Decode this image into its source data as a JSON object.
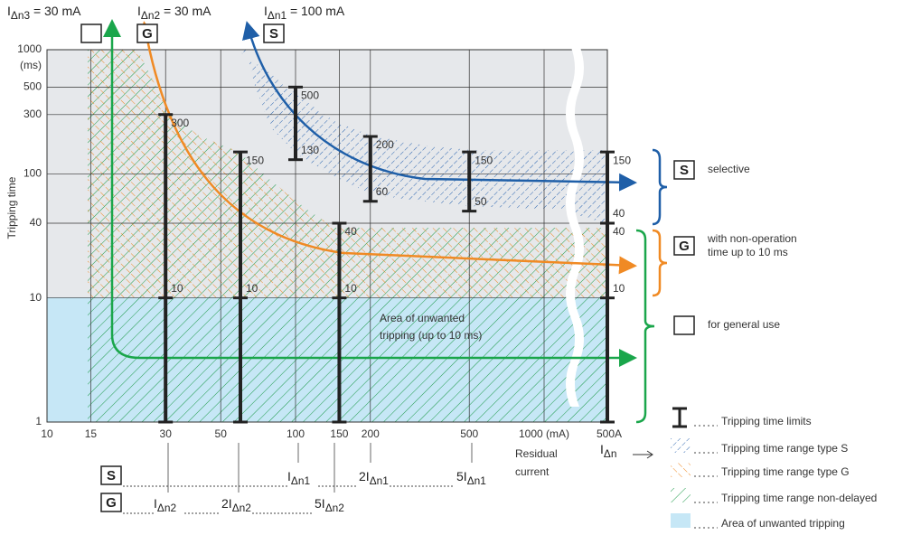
{
  "top_labels": [
    {
      "text": "I",
      "sub": "Δn3",
      "rest": " = 30 mA"
    },
    {
      "text": "I",
      "sub": "Δn2",
      "rest": " = 30 mA",
      "badge": "G"
    },
    {
      "text": "I",
      "sub": "Δn1",
      "rest": " = 100 mA",
      "badge": "S"
    }
  ],
  "axes": {
    "y_title": "Tripping time",
    "y_unit": "(ms)",
    "ylim": [
      1,
      1000
    ],
    "yticks": [
      1,
      10,
      40,
      100,
      300,
      500,
      1000
    ],
    "xlim": [
      10,
      1000
    ],
    "xticks": [
      10,
      15,
      30,
      50,
      100,
      150,
      200,
      500,
      {
        "value": 1000,
        "label": "1000 (mA)"
      }
    ],
    "x_end_label": "500A",
    "x_title": [
      "Residual",
      "current"
    ],
    "x_symbol": {
      "text": "I",
      "sub": "Δn"
    }
  },
  "limit_bars": [
    {
      "x": 30,
      "values": [
        300,
        10
      ]
    },
    {
      "x": 60,
      "values": [
        150,
        10
      ]
    },
    {
      "x": 150,
      "values": [
        40,
        10
      ]
    },
    {
      "x": 500000,
      "values": [
        150,
        40,
        40,
        10
      ]
    }
  ],
  "s_bars": [
    {
      "x": 100,
      "values": [
        500,
        130
      ]
    },
    {
      "x": 200,
      "values": [
        200,
        60
      ]
    },
    {
      "x": 500,
      "values": [
        150,
        50
      ]
    }
  ],
  "area_label": [
    "Area of unwanted",
    "tripping (up to 10 ms)"
  ],
  "side_labels": [
    {
      "badge": "S",
      "lines": [
        "selective"
      ]
    },
    {
      "badge": "G",
      "lines": [
        "with non-operation",
        "time up to 10 ms"
      ]
    },
    {
      "lines": [
        "for general use"
      ]
    }
  ],
  "formulas": [
    {
      "badge": "S",
      "items": [
        {
          "text": "I",
          "sub": "Δn1"
        },
        {
          "text": "2I",
          "sub": "Δn1"
        },
        {
          "text": "5I",
          "sub": "Δn1"
        }
      ]
    },
    {
      "badge": "G",
      "items": [
        {
          "text": "I",
          "sub": "Δn2"
        },
        {
          "text": "2I",
          "sub": "Δn2"
        },
        {
          "text": "5I",
          "sub": "Δn2"
        }
      ]
    }
  ],
  "legend": [
    "Tripping time limits",
    "Tripping time range type S",
    "Tripping time range type G",
    "Tripping time range non-delayed",
    "Area of unwanted tripping"
  ]
}
